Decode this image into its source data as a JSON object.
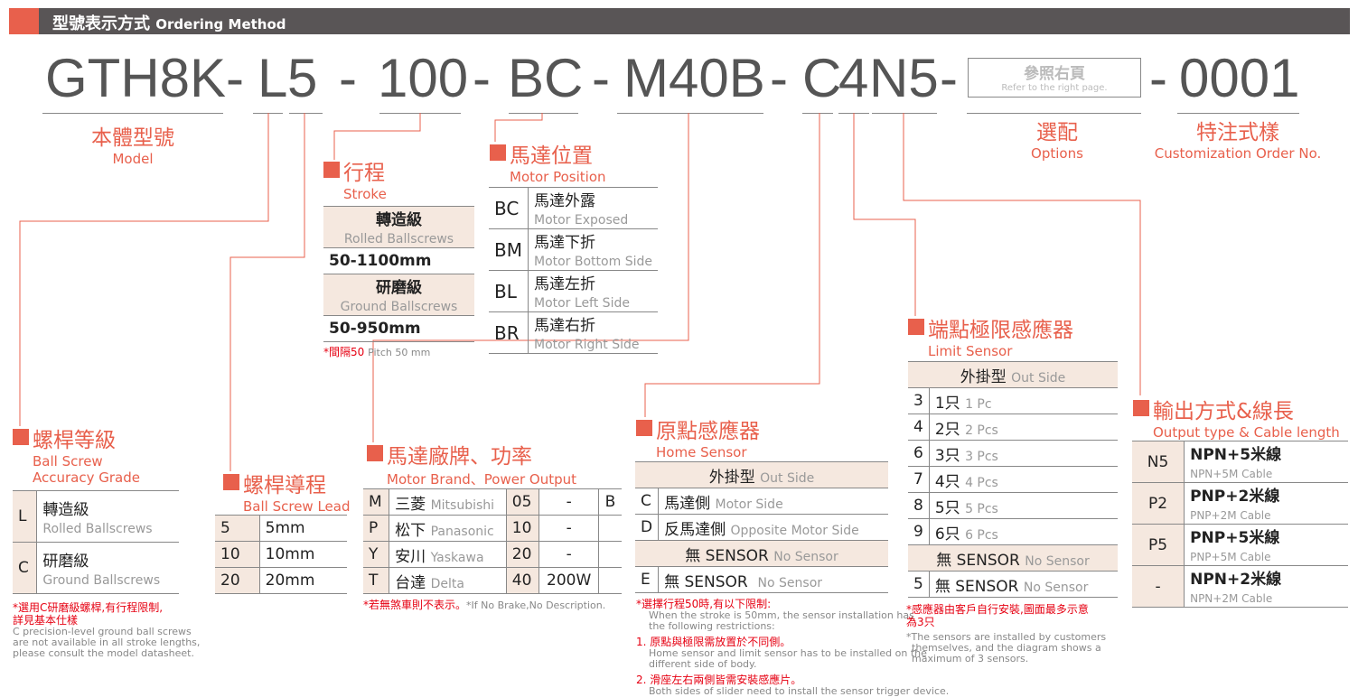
{
  "header": {
    "title_zh": "型號表示方式",
    "title_en": "Ordering Method"
  },
  "code": {
    "model": "GTH8K-",
    "grade": "L",
    "lead": "5",
    "d1": "-",
    "stroke": "100",
    "d2": "-",
    "pos": "BC",
    "d3": "-",
    "motor": "M40B",
    "d4": "-",
    "home": "C",
    "limit": "4",
    "output": "N5",
    "d5": "-",
    "d6": "-",
    "custom": "0001"
  },
  "refer": {
    "zh": "參照右頁",
    "en": "Refer to the right page."
  },
  "labels": {
    "model_zh": "本體型號",
    "model_en": "Model",
    "options_zh": "選配",
    "options_en": "Options",
    "custom_zh": "特注式樣",
    "custom_en": "Customization Order No."
  },
  "stroke": {
    "zh": "行程",
    "en": "Stroke",
    "rows": [
      {
        "zh": "轉造級",
        "en": "Rolled Ballscrews"
      },
      {
        "v": "50-1100mm"
      },
      {
        "zh": "研磨級",
        "en": "Ground Ballscrews"
      },
      {
        "v": "50-950mm"
      }
    ],
    "note_zh": "*間隔50",
    "note_en": "Pitch 50 mm"
  },
  "position": {
    "zh": "馬達位置",
    "en": "Motor Position",
    "rows": [
      {
        "c": "BC",
        "zh": "馬達外露",
        "en": "Motor Exposed"
      },
      {
        "c": "BM",
        "zh": "馬達下折",
        "en": "Motor Bottom Side"
      },
      {
        "c": "BL",
        "zh": "馬達左折",
        "en": "Motor Left Side"
      },
      {
        "c": "BR",
        "zh": "馬達右折",
        "en": "Motor Right Side"
      }
    ]
  },
  "grade": {
    "zh": "螺桿等級",
    "en1": "Ball Screw",
    "en2": "Accuracy Grade",
    "rows": [
      {
        "c": "L",
        "zh": "轉造級",
        "en": "Rolled Ballscrews"
      },
      {
        "c": "C",
        "zh": "研磨級",
        "en": "Ground Ballscrews"
      }
    ],
    "note_zh1": "*選用C研磨級螺桿,有行程限制,",
    "note_zh2": "詳見基本仕樣",
    "note_en1": "C precision-level ground ball screws",
    "note_en2": "are not available in all stroke lengths,",
    "note_en3": "please consult the model datasheet."
  },
  "lead": {
    "zh": "螺桿導程",
    "en": "Ball Screw Lead",
    "rows": [
      {
        "c": "5",
        "v": "5mm"
      },
      {
        "c": "10",
        "v": "10mm"
      },
      {
        "c": "20",
        "v": "20mm"
      }
    ]
  },
  "motor": {
    "zh": "馬達廠牌、功率",
    "en": "Motor Brand、Power Output",
    "rows": [
      {
        "c": "M",
        "zh": "三菱",
        "en": "Mitsubishi",
        "p": "05",
        "w": "-",
        "b": "B"
      },
      {
        "c": "P",
        "zh": "松下",
        "en": "Panasonic",
        "p": "10",
        "w": "-",
        "b": ""
      },
      {
        "c": "Y",
        "zh": "安川",
        "en": "Yaskawa",
        "p": "20",
        "w": "-",
        "b": ""
      },
      {
        "c": "T",
        "zh": "台達",
        "en": "Delta",
        "p": "40",
        "w": "200W",
        "b": ""
      }
    ],
    "note_zh": "*若無煞車則不表示。",
    "note_en": "*If No Brake,No Description."
  },
  "home": {
    "zh": "原點感應器",
    "en": "Home Sensor",
    "head_zh": "外掛型",
    "head_en": "Out Side",
    "rows": [
      {
        "c": "C",
        "zh": "馬達側",
        "en": "Motor Side"
      },
      {
        "c": "D",
        "zh": "反馬達側",
        "en": "Opposite Motor Side"
      }
    ],
    "none_zh": "無 SENSOR",
    "none_en": "No Sensor",
    "e": {
      "c": "E",
      "zh": "無  SENSOR",
      "en": "No Sensor"
    },
    "notes": [
      "*選擇行程50時,有以下限制:",
      "When the stroke is 50mm, the sensor installation has",
      "the following restrictions:",
      "1. 原點與極限需放置於不同側。",
      "Home sensor and limit sensor has to be installed on the",
      "different side of body.",
      "2. 滑座左右兩側皆需安裝感應片。",
      "Both sides of slider need to install the sensor trigger device."
    ]
  },
  "limit": {
    "zh": "端點極限感應器",
    "en": "Limit Sensor",
    "head_zh": "外掛型",
    "head_en": "Out Side",
    "rows": [
      {
        "c": "3",
        "zh": "1只",
        "en": "1 Pc"
      },
      {
        "c": "4",
        "zh": "2只",
        "en": "2 Pcs"
      },
      {
        "c": "6",
        "zh": "3只",
        "en": "3 Pcs"
      },
      {
        "c": "7",
        "zh": "4只",
        "en": "4 Pcs"
      },
      {
        "c": "8",
        "zh": "5只",
        "en": "5 Pcs"
      },
      {
        "c": "9",
        "zh": "6只",
        "en": "6 Pcs"
      }
    ],
    "none_zh": "無 SENSOR",
    "none_en": "No Sensor",
    "five": {
      "c": "5",
      "zh": "無 SENSOR",
      "en": "No Sensor"
    },
    "notes": [
      "*感應器由客戶自行安裝,圖面最多示意",
      "為3只",
      "*The sensors are installed by customers",
      "themselves, and the diagram shows a",
      "maximum of 3 sensors."
    ]
  },
  "output": {
    "zh": "輸出方式&線長",
    "en": "Output type & Cable length",
    "rows": [
      {
        "c": "N5",
        "zh": "NPN+5米線",
        "en": "NPN+5M Cable"
      },
      {
        "c": "P2",
        "zh": "PNP+2米線",
        "en": "PNP+2M Cable"
      },
      {
        "c": "P5",
        "zh": "PNP+5米線",
        "en": "PNP+5M Cable"
      },
      {
        "c": "-",
        "zh": "NPN+2米線",
        "en": "NPN+2M Cable"
      }
    ]
  },
  "colors": {
    "accent": "#e8604c",
    "header": "#595556",
    "tint": "#f5e8df"
  }
}
